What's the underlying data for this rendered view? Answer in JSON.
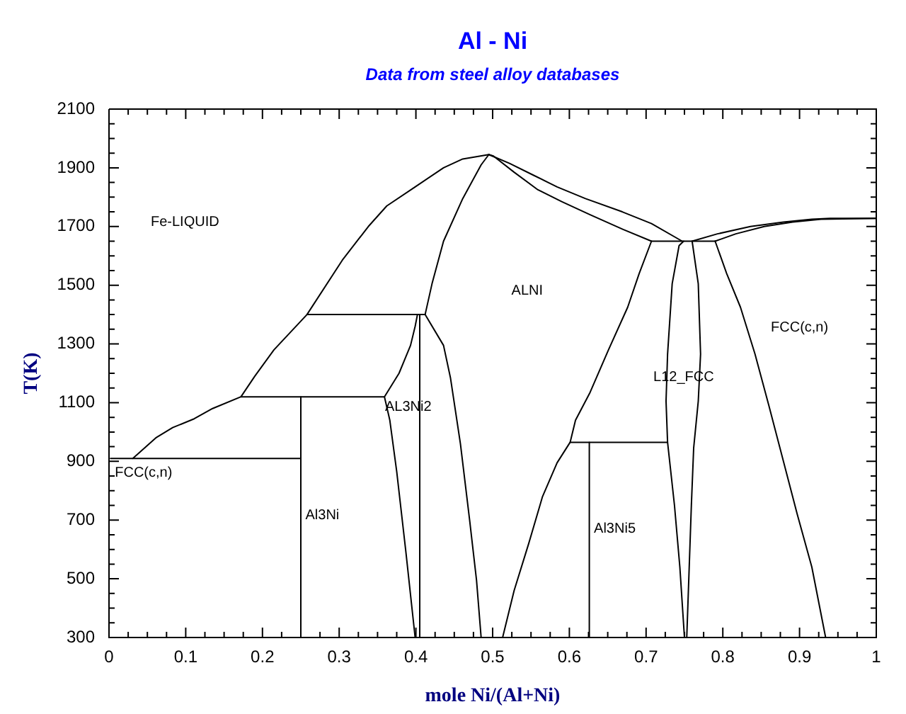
{
  "chart_data": {
    "type": "line",
    "title": "Al - Ni",
    "subtitle": "Data from steel alloy databases",
    "xlabel": "mole Ni/(Al+Ni)",
    "ylabel": "T(K)",
    "xlim": [
      0,
      1
    ],
    "ylim": [
      300,
      2100
    ],
    "xticks": [
      0,
      {
        "value": 0.025,
        "label": null
      },
      {
        "value": 0.05,
        "label": null
      },
      {
        "value": 0.075,
        "label": null
      },
      0.1,
      {
        "value": 0.125,
        "label": null
      },
      {
        "value": 0.15,
        "label": null
      },
      {
        "value": 0.175,
        "label": null
      },
      0.2,
      {
        "value": 0.225,
        "label": null
      },
      {
        "value": 0.25,
        "label": null
      },
      {
        "value": 0.275,
        "label": null
      },
      0.3,
      {
        "value": 0.325,
        "label": null
      },
      {
        "value": 0.35,
        "label": null
      },
      {
        "value": 0.375,
        "label": null
      },
      0.4,
      {
        "value": 0.425,
        "label": null
      },
      {
        "value": 0.45,
        "label": null
      },
      {
        "value": 0.475,
        "label": null
      },
      0.5,
      {
        "value": 0.525,
        "label": null
      },
      {
        "value": 0.55,
        "label": null
      },
      {
        "value": 0.575,
        "label": null
      },
      0.6,
      {
        "value": 0.625,
        "label": null
      },
      {
        "value": 0.65,
        "label": null
      },
      {
        "value": 0.675,
        "label": null
      },
      0.7,
      {
        "value": 0.725,
        "label": null
      },
      {
        "value": 0.75,
        "label": null
      },
      {
        "value": 0.775,
        "label": null
      },
      0.8,
      {
        "value": 0.825,
        "label": null
      },
      {
        "value": 0.85,
        "label": null
      },
      {
        "value": 0.875,
        "label": null
      },
      0.9,
      {
        "value": 0.925,
        "label": null
      },
      {
        "value": 0.95,
        "label": null
      },
      {
        "value": 0.975,
        "label": null
      },
      1
    ],
    "yticks": [
      300,
      {
        "value": 350,
        "label": null
      },
      {
        "value": 400,
        "label": null
      },
      {
        "value": 450,
        "label": null
      },
      500,
      {
        "value": 550,
        "label": null
      },
      {
        "value": 600,
        "label": null
      },
      {
        "value": 650,
        "label": null
      },
      700,
      {
        "value": 750,
        "label": null
      },
      {
        "value": 800,
        "label": null
      },
      {
        "value": 850,
        "label": null
      },
      900,
      {
        "value": 950,
        "label": null
      },
      {
        "value": 1000,
        "label": null
      },
      {
        "value": 1050,
        "label": null
      },
      1100,
      {
        "value": 1150,
        "label": null
      },
      {
        "value": 1200,
        "label": null
      },
      {
        "value": 1250,
        "label": null
      },
      1300,
      {
        "value": 1350,
        "label": null
      },
      {
        "value": 1400,
        "label": null
      },
      {
        "value": 1450,
        "label": null
      },
      1500,
      {
        "value": 1550,
        "label": null
      },
      {
        "value": 1600,
        "label": null
      },
      {
        "value": 1650,
        "label": null
      },
      1700,
      {
        "value": 1750,
        "label": null
      },
      {
        "value": 1800,
        "label": null
      },
      {
        "value": 1850,
        "label": null
      },
      1900,
      {
        "value": 1950,
        "label": null
      },
      {
        "value": 2000,
        "label": null
      },
      {
        "value": 2050,
        "label": null
      },
      2100
    ],
    "grid": false,
    "legend": false,
    "marker": "none",
    "line_style": "solid",
    "annotations": [
      "Fe-LIQUID",
      "ALNI",
      "FCC(c,n)",
      "L12_FCC",
      "AL3Ni2",
      "Al3Ni",
      "Al3Ni5",
      "FCC(c,n)"
    ],
    "series": [
      {
        "color": "#000000",
        "x": [
          0.031,
          0.061,
          0.083,
          0.111,
          0.135,
          0.172,
          0.19,
          0.215,
          0.258,
          0.304,
          0.338,
          0.362,
          0.399,
          0.436,
          0.461,
          0.495
        ],
        "values": [
          910,
          980,
          1015,
          1045,
          1080,
          1120,
          1190,
          1280,
          1400,
          1585,
          1700,
          1770,
          1835,
          1900,
          1930,
          1945
        ]
      },
      {
        "color": "#000000",
        "x": [
          0.002,
          0.25
        ],
        "values": [
          910,
          910
        ]
      },
      {
        "color": "#000000",
        "x": [
          0.25,
          0.25
        ],
        "values": [
          300,
          1120
        ]
      },
      {
        "color": "#000000",
        "x": [
          0.172,
          0.359
        ],
        "values": [
          1120,
          1120
        ]
      },
      {
        "color": "#000000",
        "x": [
          0.258,
          0.412
        ],
        "values": [
          1400,
          1400
        ]
      },
      {
        "color": "#000000",
        "x": [
          0.399,
          0.387,
          0.375,
          0.366,
          0.359,
          0.378,
          0.393,
          0.399,
          0.402
        ],
        "values": [
          300,
          590,
          865,
          1040,
          1120,
          1200,
          1295,
          1360,
          1400
        ]
      },
      {
        "color": "#000000",
        "x": [
          0.405,
          0.405
        ],
        "values": [
          300,
          1400
        ]
      },
      {
        "color": "#000000",
        "x": [
          0.485,
          0.479,
          0.47,
          0.458,
          0.445,
          0.436,
          0.412,
          0.421,
          0.436,
          0.461,
          0.485,
          0.495
        ],
        "values": [
          300,
          495,
          700,
          960,
          1185,
          1295,
          1400,
          1505,
          1650,
          1795,
          1910,
          1945
        ]
      },
      {
        "color": "#000000",
        "x": [
          0.495,
          0.522,
          0.553,
          0.584,
          0.621,
          0.669,
          0.707,
          0.747
        ],
        "values": [
          1945,
          1915,
          1875,
          1835,
          1795,
          1750,
          1710,
          1650
        ]
      },
      {
        "color": "#000000",
        "x": [
          0.495,
          0.501,
          0.528,
          0.559,
          0.59,
          0.627,
          0.67,
          0.707,
          0.691,
          0.676,
          0.651,
          0.627,
          0.608,
          0.601,
          0.584,
          0.565,
          0.547,
          0.528,
          0.513
        ],
        "values": [
          1945,
          1940,
          1885,
          1825,
          1785,
          1740,
          1690,
          1650,
          1540,
          1425,
          1280,
          1135,
          1040,
          965,
          895,
          780,
          620,
          460,
          300
        ]
      },
      {
        "color": "#000000",
        "x": [
          0.707,
          0.79
        ],
        "values": [
          1650,
          1650
        ]
      },
      {
        "color": "#000000",
        "x": [
          0.601,
          0.728
        ],
        "values": [
          965,
          965
        ]
      },
      {
        "color": "#000000",
        "x": [
          0.626,
          0.626
        ],
        "values": [
          300,
          965
        ]
      },
      {
        "color": "#000000",
        "x": [
          0.749,
          0.743,
          0.734,
          0.728,
          0.726,
          0.728,
          0.737,
          0.744,
          0.75
        ],
        "values": [
          1650,
          1635,
          1505,
          1265,
          1105,
          965,
          750,
          540,
          300
        ]
      },
      {
        "color": "#000000",
        "x": [
          0.76,
          0.768,
          0.771,
          0.768,
          0.762,
          0.759,
          0.753
        ],
        "values": [
          1650,
          1505,
          1265,
          1105,
          945,
          750,
          300
        ]
      },
      {
        "color": "#000000",
        "x": [
          0.76,
          0.793,
          0.836,
          0.879,
          0.916,
          0.94,
          1
        ],
        "values": [
          1650,
          1675,
          1700,
          1715,
          1725,
          1728,
          1728
        ]
      },
      {
        "color": "#000000",
        "x": [
          0.79,
          0.817,
          0.854,
          0.891,
          0.928,
          1
        ],
        "values": [
          1650,
          1675,
          1700,
          1715,
          1725,
          1728
        ]
      },
      {
        "color": "#000000",
        "x": [
          0.79,
          0.805,
          0.823,
          0.842,
          0.86,
          0.879,
          0.897,
          0.916,
          0.934
        ],
        "values": [
          1650,
          1540,
          1425,
          1265,
          1090,
          900,
          720,
          540,
          300
        ]
      }
    ]
  }
}
